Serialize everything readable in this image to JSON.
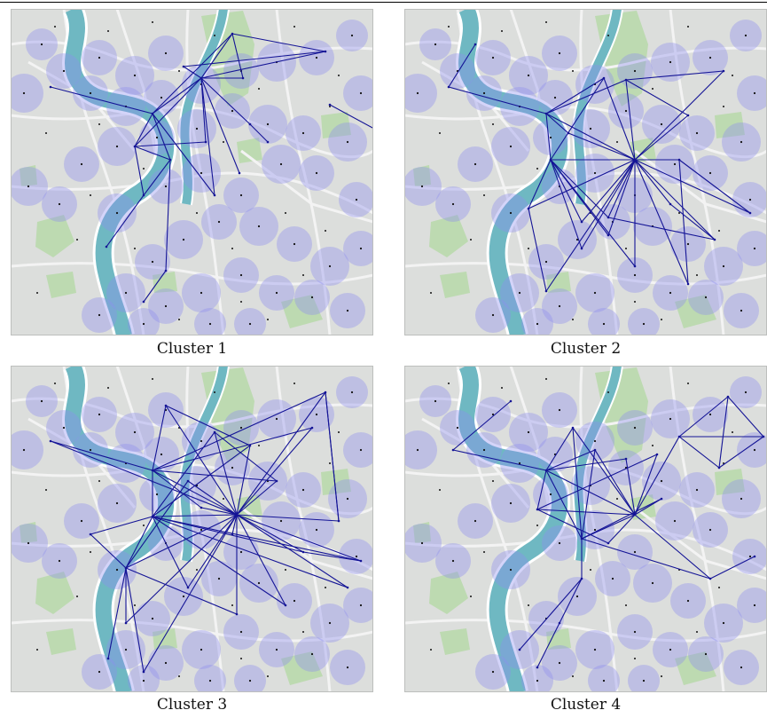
{
  "figure": {
    "panels": [
      {
        "id": "cluster-1",
        "caption": "Cluster 1"
      },
      {
        "id": "cluster-2",
        "caption": "Cluster 2"
      },
      {
        "id": "cluster-3",
        "caption": "Cluster 3"
      },
      {
        "id": "cluster-4",
        "caption": "Cluster 4"
      }
    ]
  },
  "colors": {
    "map_background": "#dcdedc",
    "river": "#6fb8c2",
    "river_edge": "#ffffff",
    "park": "#b7d9a9",
    "road": "#f3f3f3",
    "coverage_circle": "#8f8ff0",
    "link_line": "#141496",
    "node_dot": "#111111"
  },
  "icons": {
    "station_coverage": "circle-icon",
    "station_node": "dot-icon"
  }
}
